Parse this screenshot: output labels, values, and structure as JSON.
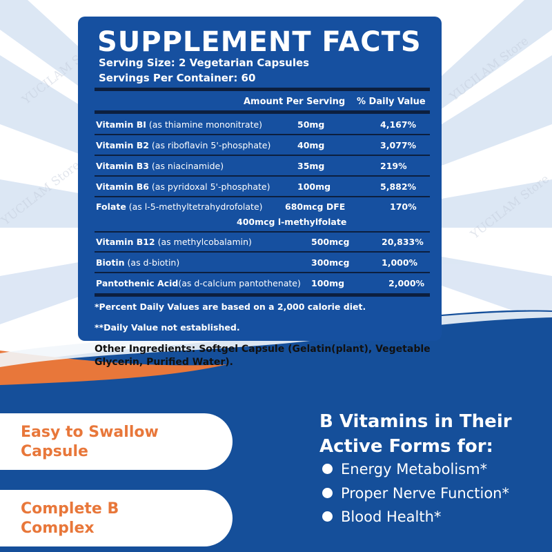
{
  "watermark": "YUCILAM Store",
  "colors": {
    "panel_blue": "#1650a0",
    "bottom_blue": "#154f9a",
    "accent_orange": "#e8773a",
    "ray_blue": "#d7e3f3"
  },
  "facts": {
    "title": "SUPPLEMENT FACTS",
    "serving_size": "Serving Size: 2 Vegetarian Capsules",
    "servings_per_container": "Servings Per Container: 60",
    "header_amount": "Amount Per Serving",
    "header_dv": "% Daily Value",
    "nutrients": [
      {
        "name": "Vitamin BI",
        "detail": " (as thiamine mononitrate)",
        "amount": "50mg",
        "dv": "4,167%"
      },
      {
        "name": "Vitamin B2",
        "detail": " (as riboflavin 5'-phosphate)",
        "amount": "40mg",
        "dv": "3,077%"
      },
      {
        "name": "Vitamin B3",
        "detail": " (as niacinamide)",
        "amount": "35mg",
        "dv": "219%"
      },
      {
        "name": "Vitamin B6",
        "detail": " (as pyridoxal 5'-phosphate)",
        "amount": "100mg",
        "dv": "5,882%"
      },
      {
        "name": "Folate",
        "detail": " (as l-5-methyltetrahydrofolate)",
        "amount": "680mcg DFE",
        "amount2": "400mcg l-methylfolate",
        "dv": "170%"
      },
      {
        "name": "Vitamin B12",
        "detail": " (as methylcobalamin)",
        "amount": "500mcg",
        "dv": "20,833%"
      },
      {
        "name": "Biotin",
        "detail": " (as d-biotin)",
        "amount": "300mcg",
        "dv": "1,000%"
      },
      {
        "name": "Pantothenic Acid",
        "detail": "(as d-calcium pantothenate)",
        "amount": "100mg",
        "dv": "2,000%"
      }
    ],
    "footnote_1": "*Percent Daily Values are based on a 2,000 calorie diet.",
    "footnote_2": "**Daily Value not established."
  },
  "other_ingredients": "Other Ingredients: Softgel Capsule (Gelatin(plant), Vegetable Glycerin, Purified Water).",
  "features": [
    {
      "line1": "Easy to Swallow",
      "line2": "Capsule"
    },
    {
      "line1": "Complete B",
      "line2": "Complex"
    }
  ],
  "benefits_heading": {
    "line1": "B Vitamins in Their",
    "line2": "Active Forms for:"
  },
  "benefits": [
    "Energy Metabolism*",
    "Proper Nerve Function*",
    "Blood Health*"
  ]
}
